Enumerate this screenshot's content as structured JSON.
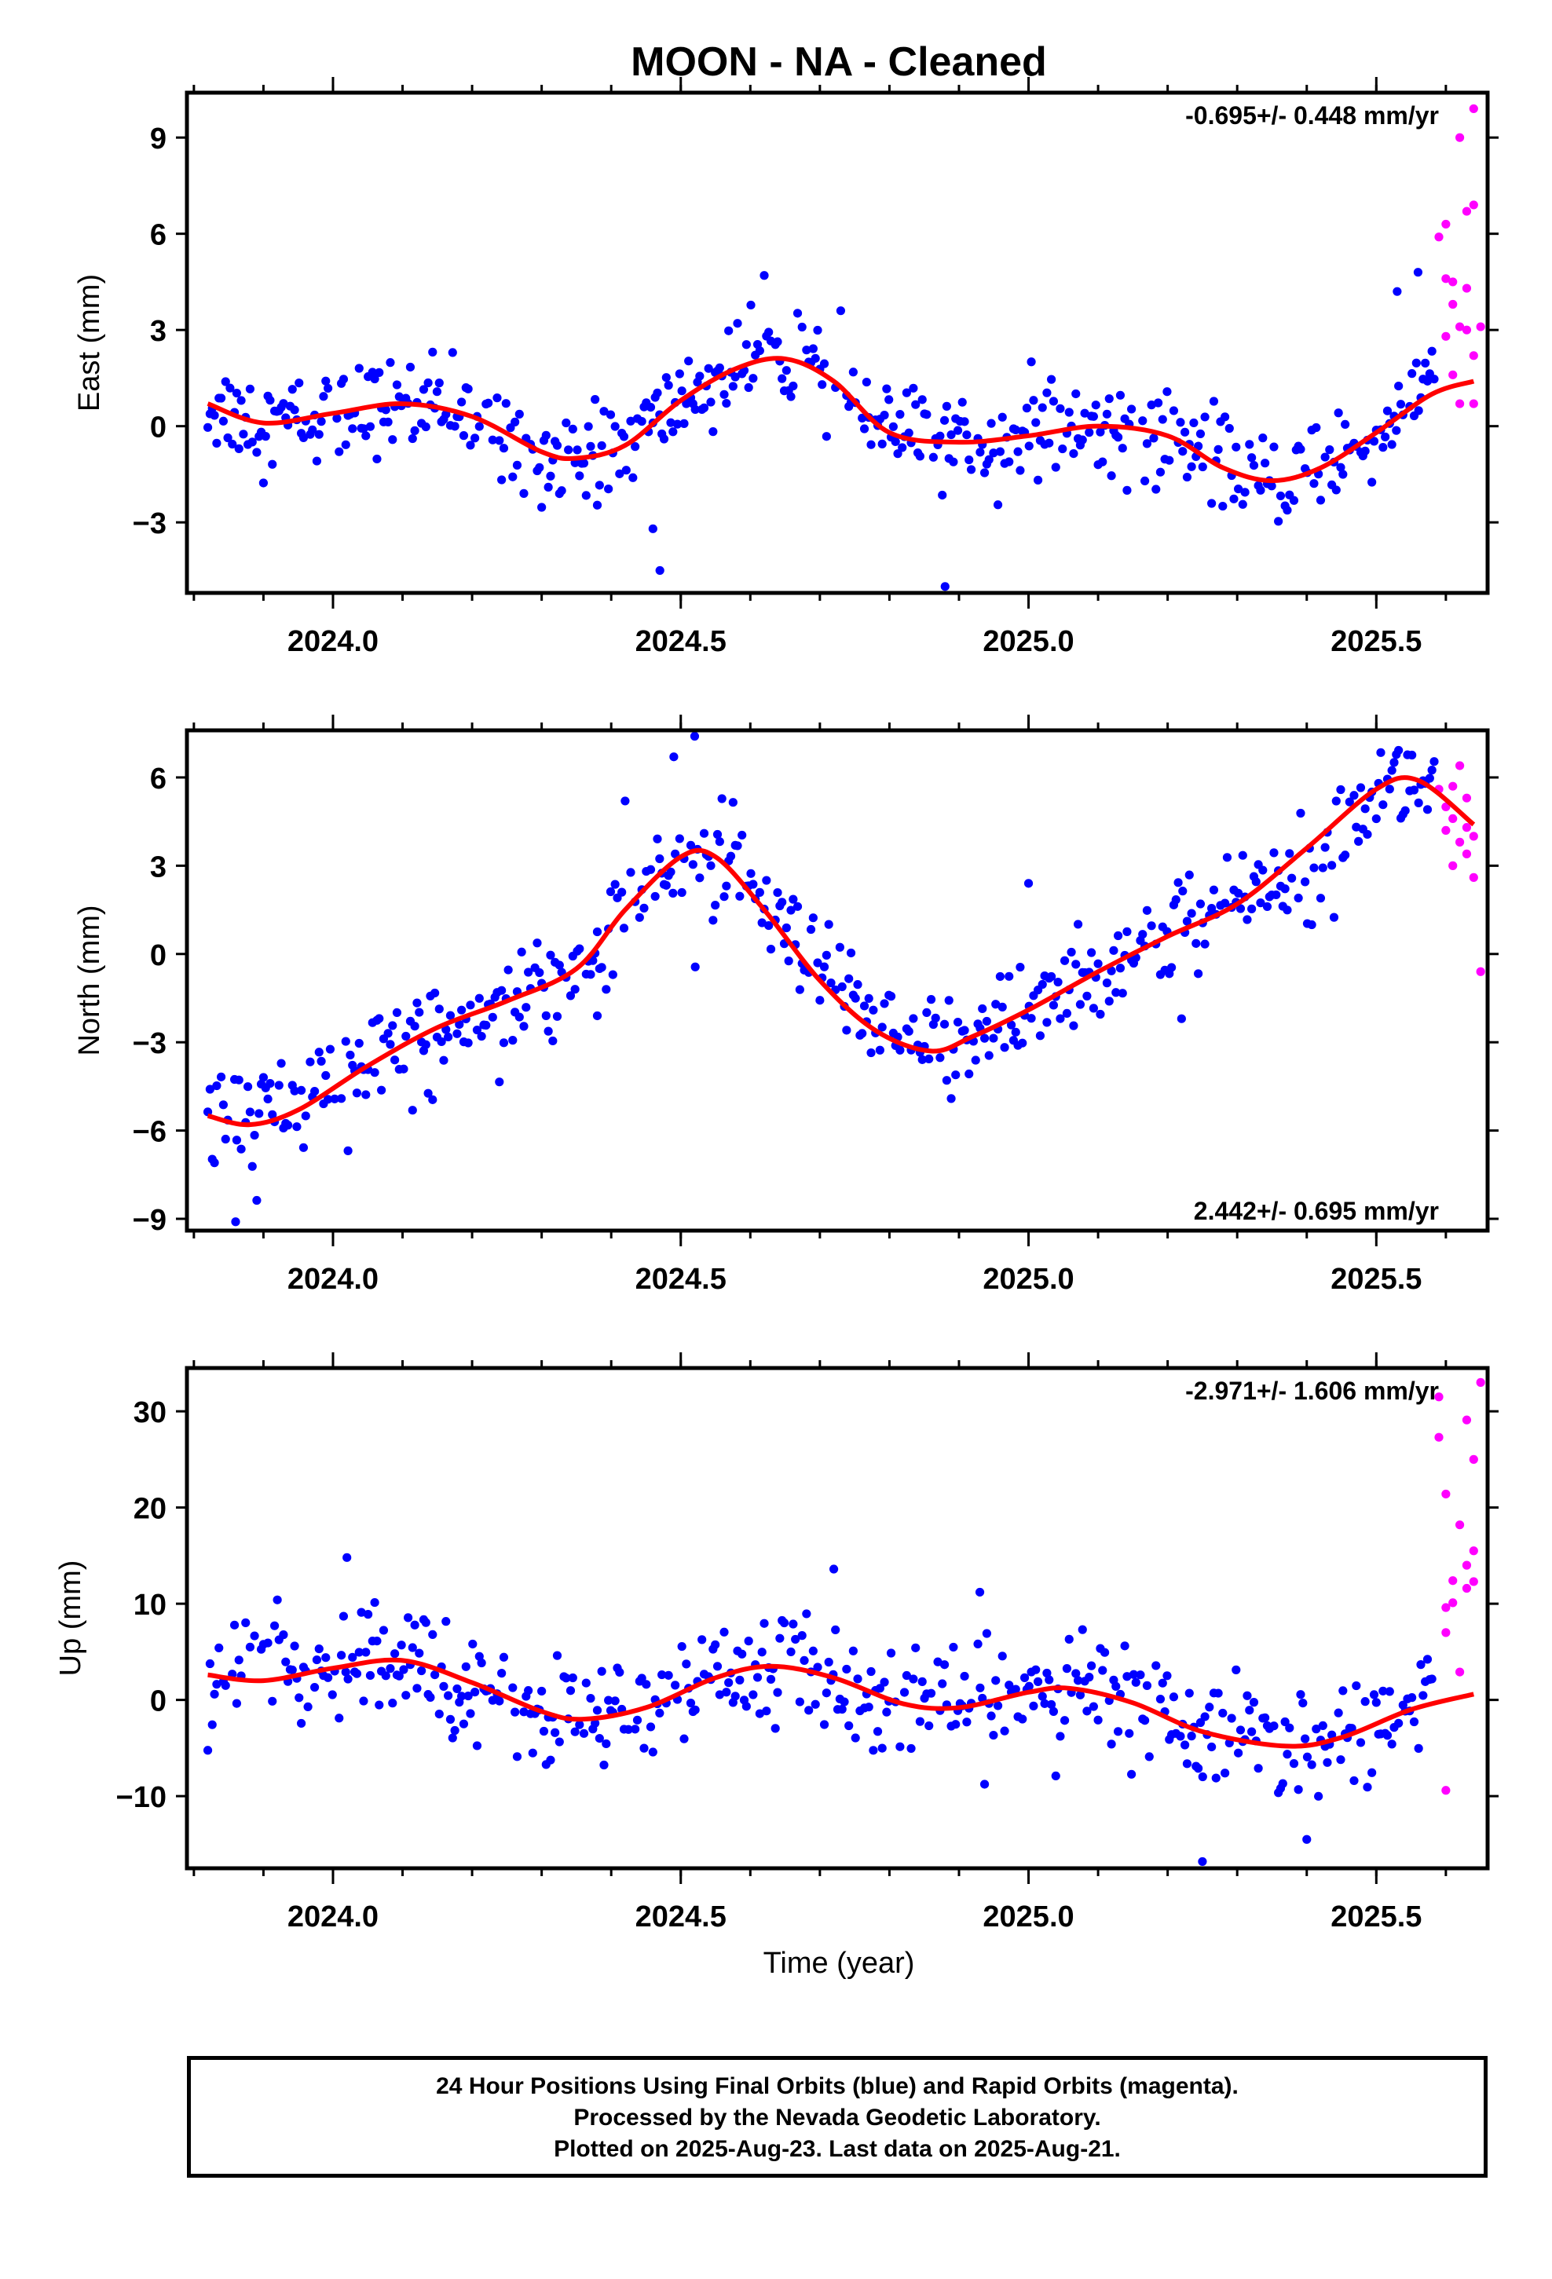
{
  "title": "MOON  - NA - Cleaned",
  "xlabel": "Time (year)",
  "colors": {
    "final": "#0000ff",
    "rapid": "#ff00ff",
    "model": "#ff0000",
    "frame": "#000000"
  },
  "caption": [
    "24 Hour Positions Using Final Orbits (blue) and Rapid Orbits (magenta).",
    "Processed by the Nevada Geodetic Laboratory.",
    "Plotted on 2025-Aug-23. Last data on 2025-Aug-21."
  ],
  "chart_data": [
    {
      "type": "scatter",
      "ylabel": "East (mm)",
      "rate_label": "-0.695+/- 0.448 mm/yr",
      "rate_position": "top-right",
      "xlim": [
        2023.79,
        2025.66
      ],
      "ylim": [
        -5.2,
        10.4
      ],
      "xticks": [
        "2024.0",
        "2024.5",
        "2025.0",
        "2025.5"
      ],
      "xtick_values": [
        2024.0,
        2024.5,
        2025.0,
        2025.5
      ],
      "yticks": [
        "−3",
        "0",
        "3",
        "6",
        "9"
      ],
      "ytick_values": [
        -3,
        0,
        3,
        6,
        9
      ],
      "model": {
        "x": [
          2023.82,
          2023.9,
          2024.0,
          2024.1,
          2024.2,
          2024.3,
          2024.35,
          2024.42,
          2024.5,
          2024.58,
          2024.65,
          2024.72,
          2024.8,
          2024.9,
          2025.0,
          2025.1,
          2025.2,
          2025.28,
          2025.35,
          2025.42,
          2025.5,
          2025.58,
          2025.64
        ],
        "y": [
          0.7,
          0.1,
          0.4,
          0.7,
          0.3,
          -0.8,
          -1.0,
          -0.6,
          0.8,
          1.8,
          2.1,
          1.4,
          -0.2,
          -0.5,
          -0.3,
          0.0,
          -0.3,
          -1.3,
          -1.7,
          -1.3,
          -0.2,
          1.0,
          1.4
        ]
      },
      "final_trend": [
        [
          2023.82,
          0.7
        ],
        [
          2023.9,
          0.1
        ],
        [
          2024.0,
          0.4
        ],
        [
          2024.1,
          0.7
        ],
        [
          2024.2,
          0.3
        ],
        [
          2024.3,
          -0.8
        ],
        [
          2024.35,
          -1.0
        ],
        [
          2024.42,
          -0.6
        ],
        [
          2024.5,
          0.8
        ],
        [
          2024.58,
          1.8
        ],
        [
          2024.65,
          2.1
        ],
        [
          2024.72,
          1.4
        ],
        [
          2024.8,
          -0.2
        ],
        [
          2024.9,
          -0.5
        ],
        [
          2025.0,
          -0.3
        ],
        [
          2025.1,
          0.0
        ],
        [
          2025.2,
          -0.3
        ],
        [
          2025.28,
          -1.3
        ],
        [
          2025.35,
          -1.7
        ],
        [
          2025.42,
          -1.3
        ],
        [
          2025.5,
          -0.2
        ],
        [
          2025.58,
          1.6
        ]
      ],
      "final_spread": 1.15,
      "final_range": [
        2023.82,
        2025.585
      ],
      "outliers": [
        [
          2024.47,
          -4.5
        ],
        [
          2024.88,
          -5.0
        ],
        [
          2024.46,
          -3.2
        ],
        [
          2024.73,
          3.6
        ],
        [
          2024.62,
          4.7
        ],
        [
          2025.56,
          4.8
        ],
        [
          2025.53,
          4.2
        ]
      ],
      "rapid": [
        [
          2025.59,
          5.9
        ],
        [
          2025.6,
          6.3
        ],
        [
          2025.6,
          4.6
        ],
        [
          2025.61,
          4.5
        ],
        [
          2025.61,
          3.8
        ],
        [
          2025.62,
          3.1
        ],
        [
          2025.62,
          9.0
        ],
        [
          2025.63,
          6.7
        ],
        [
          2025.63,
          4.3
        ],
        [
          2025.63,
          3.0
        ],
        [
          2025.64,
          9.9
        ],
        [
          2025.64,
          6.9
        ],
        [
          2025.64,
          2.2
        ],
        [
          2025.65,
          3.1
        ],
        [
          2025.61,
          1.6
        ],
        [
          2025.62,
          0.7
        ],
        [
          2025.64,
          0.7
        ],
        [
          2025.6,
          2.8
        ]
      ]
    },
    {
      "type": "scatter",
      "ylabel": "North (mm)",
      "rate_label": "2.442+/- 0.695 mm/yr",
      "rate_position": "bottom-right",
      "xlim": [
        2023.79,
        2025.66
      ],
      "ylim": [
        -9.4,
        7.6
      ],
      "xticks": [
        "2024.0",
        "2024.5",
        "2025.0",
        "2025.5"
      ],
      "xtick_values": [
        2024.0,
        2024.5,
        2025.0,
        2025.5
      ],
      "yticks": [
        "−9",
        "−6",
        "−3",
        "0",
        "3",
        "6"
      ],
      "ytick_values": [
        -9,
        -6,
        -3,
        0,
        3,
        6
      ],
      "model": {
        "x": [
          2023.82,
          2023.88,
          2023.95,
          2024.05,
          2024.15,
          2024.25,
          2024.35,
          2024.42,
          2024.5,
          2024.55,
          2024.62,
          2024.7,
          2024.78,
          2024.86,
          2024.92,
          2025.0,
          2025.1,
          2025.2,
          2025.3,
          2025.4,
          2025.5,
          2025.56,
          2025.64
        ],
        "y": [
          -5.5,
          -5.8,
          -5.3,
          -3.8,
          -2.5,
          -1.6,
          -0.5,
          1.5,
          3.3,
          3.3,
          1.5,
          -0.9,
          -2.6,
          -3.3,
          -2.8,
          -1.9,
          -0.6,
          0.6,
          1.7,
          3.6,
          5.6,
          5.9,
          4.4
        ]
      },
      "final_trend": [
        [
          2023.82,
          -5.5
        ],
        [
          2023.88,
          -5.8
        ],
        [
          2023.95,
          -5.3
        ],
        [
          2024.05,
          -3.8
        ],
        [
          2024.15,
          -2.5
        ],
        [
          2024.25,
          -1.6
        ],
        [
          2024.35,
          -0.5
        ],
        [
          2024.42,
          1.5
        ],
        [
          2024.5,
          3.3
        ],
        [
          2024.55,
          3.3
        ],
        [
          2024.62,
          1.5
        ],
        [
          2024.7,
          -0.9
        ],
        [
          2024.78,
          -2.6
        ],
        [
          2024.86,
          -3.3
        ],
        [
          2024.92,
          -2.8
        ],
        [
          2025.0,
          -1.9
        ],
        [
          2025.1,
          -0.6
        ],
        [
          2025.2,
          0.6
        ],
        [
          2025.3,
          1.7
        ],
        [
          2025.4,
          3.6
        ],
        [
          2025.5,
          5.6
        ],
        [
          2025.56,
          5.9
        ]
      ],
      "final_spread": 1.5,
      "final_range": [
        2023.82,
        2025.585
      ],
      "outliers": [
        [
          2023.86,
          -9.1
        ],
        [
          2024.52,
          7.4
        ],
        [
          2024.49,
          6.7
        ],
        [
          2024.42,
          5.2
        ],
        [
          2025.0,
          2.4
        ],
        [
          2025.22,
          -2.2
        ],
        [
          2024.38,
          -2.1
        ]
      ],
      "rapid": [
        [
          2025.59,
          5.6
        ],
        [
          2025.6,
          5.0
        ],
        [
          2025.6,
          4.2
        ],
        [
          2025.61,
          5.7
        ],
        [
          2025.61,
          4.6
        ],
        [
          2025.62,
          3.8
        ],
        [
          2025.62,
          6.4
        ],
        [
          2025.63,
          5.3
        ],
        [
          2025.63,
          4.3
        ],
        [
          2025.63,
          3.4
        ],
        [
          2025.64,
          4.0
        ],
        [
          2025.64,
          2.6
        ],
        [
          2025.65,
          -0.6
        ],
        [
          2025.61,
          3.0
        ]
      ]
    },
    {
      "type": "scatter",
      "ylabel": "Up (mm)",
      "rate_label": "-2.971+/- 1.606 mm/yr",
      "rate_position": "top-right",
      "xlim": [
        2023.79,
        2025.66
      ],
      "ylim": [
        -17.5,
        34.5
      ],
      "xticks": [
        "2024.0",
        "2024.5",
        "2025.0",
        "2025.5"
      ],
      "xtick_values": [
        2024.0,
        2024.5,
        2025.0,
        2025.5
      ],
      "yticks": [
        "−10",
        "0",
        "10",
        "20",
        "30"
      ],
      "ytick_values": [
        -10,
        0,
        10,
        20,
        30
      ],
      "model": {
        "x": [
          2023.82,
          2023.9,
          2024.0,
          2024.1,
          2024.2,
          2024.3,
          2024.36,
          2024.45,
          2024.55,
          2024.63,
          2024.72,
          2024.82,
          2024.9,
          2025.0,
          2025.06,
          2025.15,
          2025.25,
          2025.37,
          2025.45,
          2025.55,
          2025.64
        ],
        "y": [
          2.6,
          2.0,
          3.3,
          4.1,
          1.8,
          -1.2,
          -2.0,
          -0.8,
          2.3,
          3.5,
          2.3,
          -0.4,
          -0.8,
          0.8,
          1.2,
          -0.3,
          -3.3,
          -4.8,
          -3.9,
          -1.0,
          0.6
        ]
      },
      "final_trend": [
        [
          2023.82,
          2.6
        ],
        [
          2023.9,
          2.0
        ],
        [
          2024.0,
          3.3
        ],
        [
          2024.1,
          4.1
        ],
        [
          2024.2,
          1.8
        ],
        [
          2024.3,
          -1.2
        ],
        [
          2024.36,
          -2.0
        ],
        [
          2024.45,
          -0.8
        ],
        [
          2024.55,
          2.3
        ],
        [
          2024.63,
          3.5
        ],
        [
          2024.72,
          2.3
        ],
        [
          2024.82,
          -0.4
        ],
        [
          2024.9,
          -0.8
        ],
        [
          2025.0,
          0.8
        ],
        [
          2025.06,
          1.2
        ],
        [
          2025.15,
          -0.3
        ],
        [
          2025.25,
          -3.3
        ],
        [
          2025.37,
          -4.8
        ],
        [
          2025.45,
          -3.9
        ],
        [
          2025.55,
          -1.0
        ],
        [
          2025.585,
          -0.5
        ]
      ],
      "final_spread": 4.6,
      "final_range": [
        2023.82,
        2025.585
      ],
      "outliers": [
        [
          2024.02,
          14.8
        ],
        [
          2024.72,
          13.6
        ],
        [
          2025.25,
          -16.8
        ],
        [
          2024.93,
          11.2
        ],
        [
          2025.4,
          -14.5
        ],
        [
          2023.92,
          10.4
        ]
      ],
      "rapid": [
        [
          2025.59,
          31.5
        ],
        [
          2025.59,
          27.3
        ],
        [
          2025.6,
          21.4
        ],
        [
          2025.6,
          9.6
        ],
        [
          2025.6,
          7.0
        ],
        [
          2025.6,
          -9.4
        ],
        [
          2025.61,
          10.1
        ],
        [
          2025.61,
          12.4
        ],
        [
          2025.62,
          2.9
        ],
        [
          2025.62,
          18.2
        ],
        [
          2025.63,
          29.1
        ],
        [
          2025.63,
          14.0
        ],
        [
          2025.63,
          11.6
        ],
        [
          2025.64,
          15.5
        ],
        [
          2025.64,
          12.3
        ],
        [
          2025.64,
          25.0
        ],
        [
          2025.65,
          33.0
        ]
      ]
    }
  ]
}
